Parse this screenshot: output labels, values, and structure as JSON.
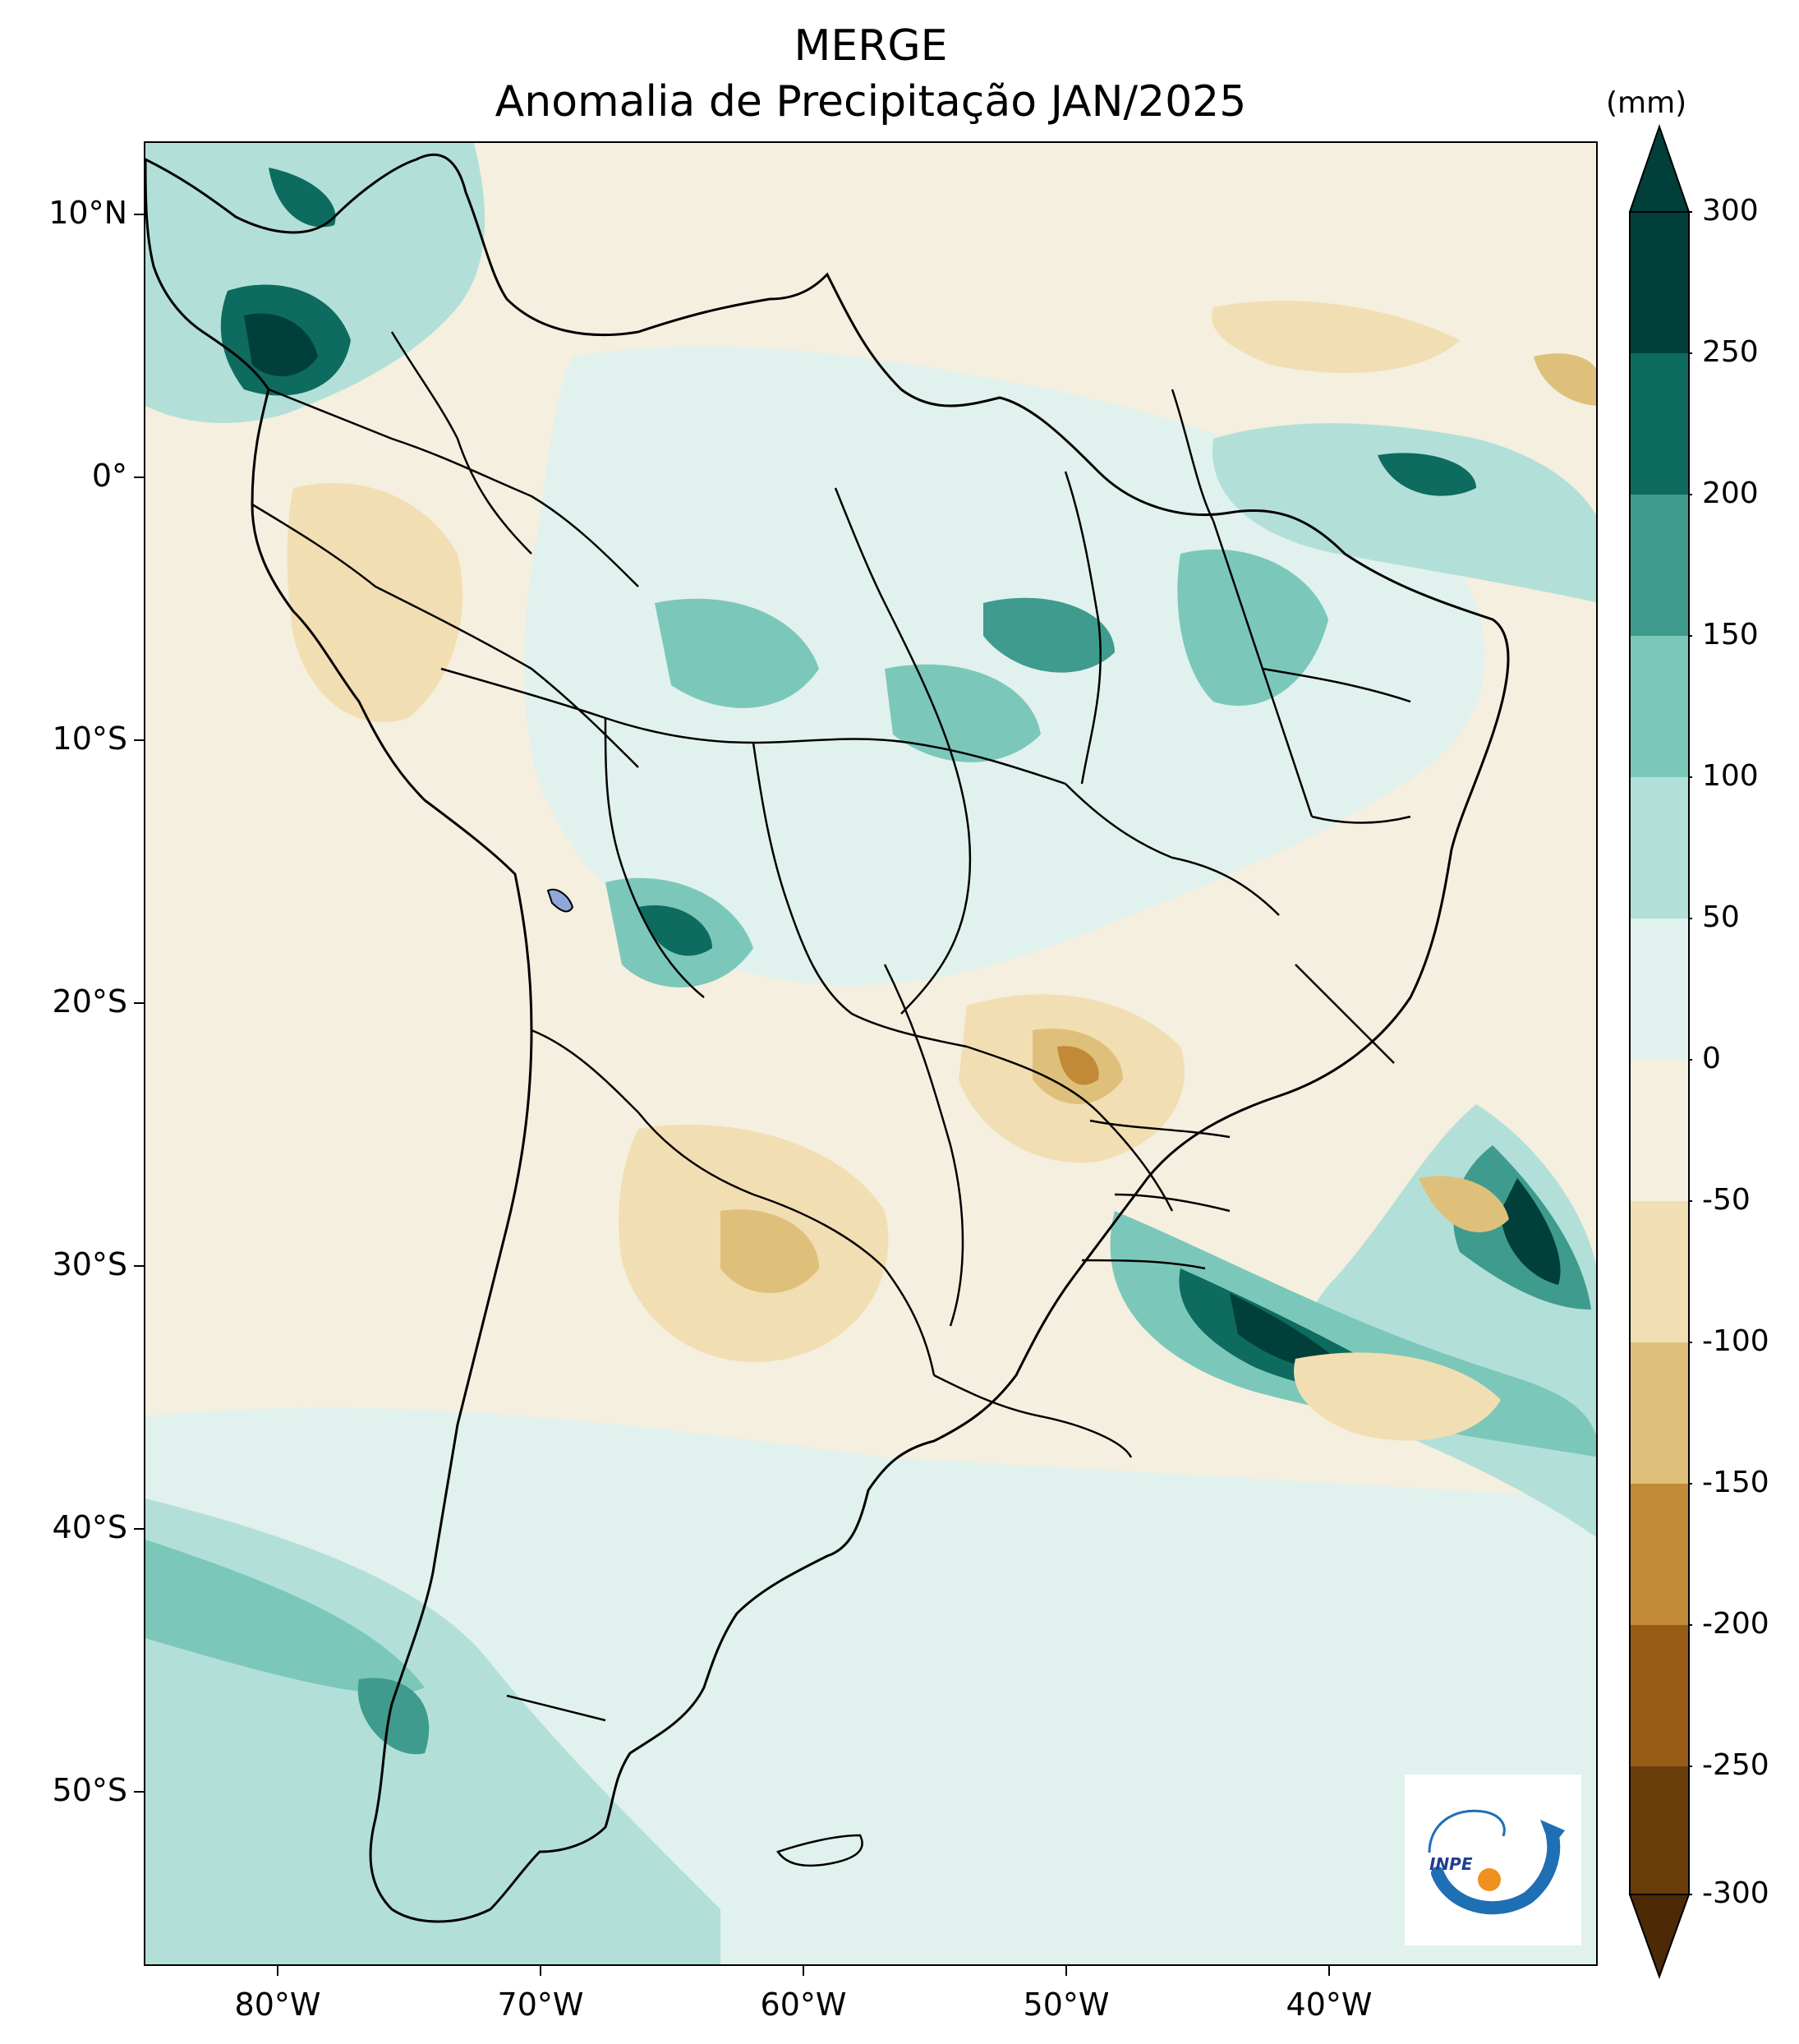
{
  "title": {
    "line1": "MERGE",
    "line2": "Anomalia de Precipitação JAN/2025"
  },
  "map": {
    "region": "South America",
    "variable": "Precipitation anomaly",
    "lat_range": [
      -56,
      12.5
    ],
    "lon_range": [
      -85,
      -30
    ],
    "lat_ticks": [
      "10°N",
      "0°",
      "10°S",
      "20°S",
      "30°S",
      "40°S",
      "50°S"
    ],
    "lon_ticks": [
      "80°W",
      "70°W",
      "60°W",
      "50°W",
      "40°W"
    ]
  },
  "colorbar": {
    "unit": "(mm)",
    "levels": [
      "300",
      "250",
      "200",
      "150",
      "100",
      "50",
      "0",
      "-50",
      "-100",
      "-150",
      "-200",
      "-250",
      "-300"
    ],
    "colors": [
      "#01403a",
      "#0e6b5f",
      "#3f9b8e",
      "#7bc8ba",
      "#b2e0d8",
      "#e1f1ee",
      "#f5efdf",
      "#f2deb3",
      "#dfc07a",
      "#c18a36",
      "#985b15",
      "#6a3c0a"
    ]
  },
  "logo": {
    "text": "INPE"
  }
}
